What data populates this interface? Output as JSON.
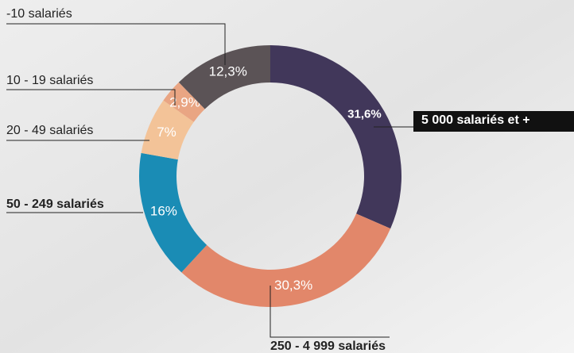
{
  "chart_data": {
    "type": "donut",
    "categories": [
      "5 000 salariés et +",
      "250 - 4 999 salariés",
      "50 - 249 salariés",
      "20 - 49 salariés",
      "10 - 19 salariés",
      "-10 salariés"
    ],
    "values": [
      31.6,
      30.3,
      16,
      7,
      2.9,
      12.3
    ],
    "value_labels": [
      "31,6%",
      "30,3%",
      "16%",
      "7%",
      "2,9%",
      "12,3%"
    ],
    "colors": [
      "#41375a",
      "#e2876a",
      "#1a8cb5",
      "#f3c398",
      "#e9a583",
      "#5b5356"
    ]
  }
}
